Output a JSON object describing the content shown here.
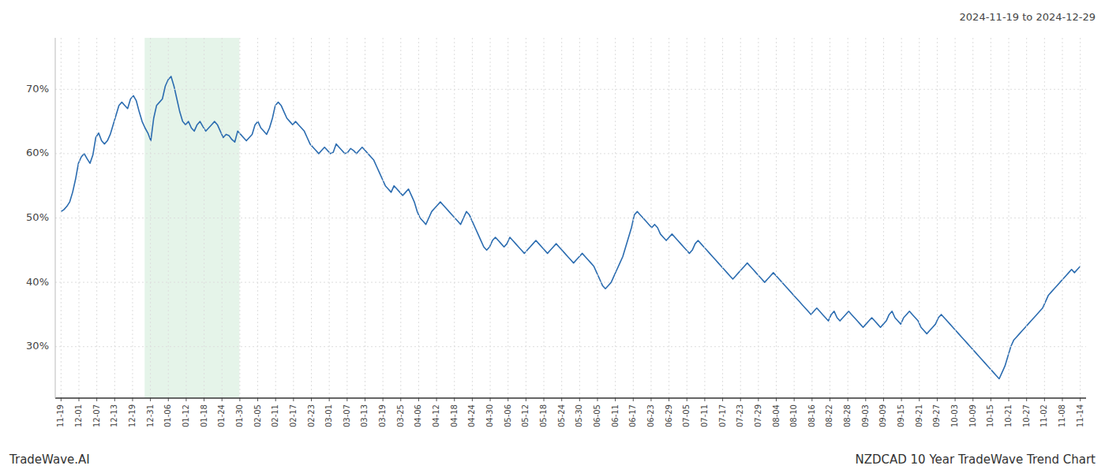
{
  "chart_data": {
    "type": "line",
    "title": "NZDCAD 10 Year TradeWave Trend Chart",
    "subtitle": "2024-11-19 to 2024-12-29",
    "annotations": [
      "TradeWave.AI"
    ],
    "color": "#2b6cb0",
    "grid": true,
    "xlim": [
      -2,
      354
    ],
    "xticks": [
      {
        "value": 0,
        "label": "11-19"
      },
      {
        "value": 6.1754,
        "label": "12-01"
      },
      {
        "value": 12.3509,
        "label": "12-07"
      },
      {
        "value": 18.5263,
        "label": "12-13"
      },
      {
        "value": 24.7018,
        "label": "12-19"
      },
      {
        "value": 30.8772,
        "label": "12-31"
      },
      {
        "value": 37.0526,
        "label": "01-06"
      },
      {
        "value": 43.2281,
        "label": "01-12"
      },
      {
        "value": 49.4035,
        "label": "01-18"
      },
      {
        "value": 55.5789,
        "label": "01-24"
      },
      {
        "value": 61.7544,
        "label": "01-30"
      },
      {
        "value": 67.9298,
        "label": "02-05"
      },
      {
        "value": 74.1053,
        "label": "02-11"
      },
      {
        "value": 80.2807,
        "label": "02-17"
      },
      {
        "value": 86.4561,
        "label": "02-23"
      },
      {
        "value": 92.6316,
        "label": "03-01"
      },
      {
        "value": 98.807,
        "label": "03-07"
      },
      {
        "value": 104.9825,
        "label": "03-13"
      },
      {
        "value": 111.1579,
        "label": "03-19"
      },
      {
        "value": 117.3333,
        "label": "03-25"
      },
      {
        "value": 123.5088,
        "label": "04-06"
      },
      {
        "value": 129.6842,
        "label": "04-12"
      },
      {
        "value": 135.8596,
        "label": "04-18"
      },
      {
        "value": 142.0351,
        "label": "04-24"
      },
      {
        "value": 148.2105,
        "label": "04-30"
      },
      {
        "value": 154.386,
        "label": "05-06"
      },
      {
        "value": 160.5614,
        "label": "05-12"
      },
      {
        "value": 166.7368,
        "label": "05-18"
      },
      {
        "value": 172.9123,
        "label": "05-24"
      },
      {
        "value": 179.0877,
        "label": "05-30"
      },
      {
        "value": 185.2632,
        "label": "06-05"
      },
      {
        "value": 191.4386,
        "label": "06-11"
      },
      {
        "value": 197.614,
        "label": "06-17"
      },
      {
        "value": 203.7895,
        "label": "06-23"
      },
      {
        "value": 209.9649,
        "label": "06-29"
      },
      {
        "value": 216.1404,
        "label": "07-05"
      },
      {
        "value": 222.3158,
        "label": "07-11"
      },
      {
        "value": 228.4912,
        "label": "07-17"
      },
      {
        "value": 234.6667,
        "label": "07-23"
      },
      {
        "value": 240.8421,
        "label": "07-29"
      },
      {
        "value": 247.0175,
        "label": "08-04"
      },
      {
        "value": 253.193,
        "label": "08-10"
      },
      {
        "value": 259.3684,
        "label": "08-16"
      },
      {
        "value": 265.5439,
        "label": "08-22"
      },
      {
        "value": 271.7193,
        "label": "08-28"
      },
      {
        "value": 277.8947,
        "label": "09-03"
      },
      {
        "value": 284.0702,
        "label": "09-09"
      },
      {
        "value": 290.2456,
        "label": "09-15"
      },
      {
        "value": 296.4211,
        "label": "09-21"
      },
      {
        "value": 302.5965,
        "label": "09-27"
      },
      {
        "value": 308.7719,
        "label": "10-03"
      },
      {
        "value": 314.9474,
        "label": "10-09"
      },
      {
        "value": 321.1228,
        "label": "10-15"
      },
      {
        "value": 327.2982,
        "label": "10-21"
      },
      {
        "value": 333.4737,
        "label": "10-27"
      },
      {
        "value": 339.6491,
        "label": "11-02"
      },
      {
        "value": 345.8246,
        "label": "11-08"
      },
      {
        "value": 352,
        "label": "11-14"
      }
    ],
    "ylim": [
      22,
      78
    ],
    "yticks": [
      {
        "value": 30,
        "label": "30%"
      },
      {
        "value": 40,
        "label": "40%"
      },
      {
        "value": 50,
        "label": "50%"
      },
      {
        "value": 60,
        "label": "60%"
      },
      {
        "value": 70,
        "label": "70%"
      }
    ],
    "shade": {
      "xlim": [
        28.864,
        61.6
      ],
      "color": "#d4edda"
    },
    "values": [
      51.0,
      51.3,
      51.8,
      52.5,
      54.0,
      56.0,
      58.5,
      59.5,
      60.0,
      59.2,
      58.5,
      59.8,
      62.5,
      63.2,
      62.0,
      61.5,
      62.0,
      63.0,
      64.5,
      66.0,
      67.5,
      68.0,
      67.5,
      67.0,
      68.5,
      69.0,
      68.2,
      66.5,
      65.0,
      64.0,
      63.2,
      62.0,
      65.5,
      67.5,
      68.0,
      68.5,
      70.5,
      71.5,
      72.0,
      70.5,
      68.5,
      66.5,
      65.0,
      64.5,
      65.0,
      64.0,
      63.5,
      64.5,
      65.0,
      64.2,
      63.5,
      64.0,
      64.5,
      65.0,
      64.5,
      63.5,
      62.5,
      63.0,
      62.8,
      62.2,
      61.8,
      63.5,
      63.0,
      62.5,
      62.0,
      62.5,
      63.0,
      64.5,
      65.0,
      64.0,
      63.5,
      63.0,
      64.0,
      65.5,
      67.5,
      68.0,
      67.5,
      66.5,
      65.5,
      65.0,
      64.5,
      65.0,
      64.5,
      64.0,
      63.5,
      62.5,
      61.5,
      61.0,
      60.5,
      60.0,
      60.5,
      61.0,
      60.5,
      60.0,
      60.2,
      61.5,
      61.0,
      60.5,
      60.0,
      60.2,
      60.8,
      60.5,
      60.0,
      60.5,
      61.0,
      60.5,
      60.0,
      59.5,
      59.0,
      58.0,
      57.0,
      56.0,
      55.0,
      54.5,
      54.0,
      55.0,
      54.5,
      54.0,
      53.5,
      54.0,
      54.5,
      53.5,
      52.5,
      51.0,
      50.0,
      49.5,
      49.0,
      50.0,
      51.0,
      51.5,
      52.0,
      52.5,
      52.0,
      51.5,
      51.0,
      50.5,
      50.0,
      49.5,
      49.0,
      50.0,
      51.0,
      50.5,
      49.5,
      48.5,
      47.5,
      46.5,
      45.5,
      45.0,
      45.5,
      46.5,
      47.0,
      46.5,
      46.0,
      45.5,
      46.0,
      47.0,
      46.5,
      46.0,
      45.5,
      45.0,
      44.5,
      45.0,
      45.5,
      46.0,
      46.5,
      46.0,
      45.5,
      45.0,
      44.5,
      45.0,
      45.5,
      46.0,
      45.5,
      45.0,
      44.5,
      44.0,
      43.5,
      43.0,
      43.5,
      44.0,
      44.5,
      44.0,
      43.5,
      43.0,
      42.5,
      41.5,
      40.5,
      39.5,
      39.0,
      39.5,
      40.0,
      41.0,
      42.0,
      43.0,
      44.0,
      45.5,
      47.0,
      48.5,
      50.5,
      51.0,
      50.5,
      50.0,
      49.5,
      49.0,
      48.5,
      49.0,
      48.5,
      47.5,
      47.0,
      46.5,
      47.0,
      47.5,
      47.0,
      46.5,
      46.0,
      45.5,
      45.0,
      44.5,
      45.0,
      46.0,
      46.5,
      46.0,
      45.5,
      45.0,
      44.5,
      44.0,
      43.5,
      43.0,
      42.5,
      42.0,
      41.5,
      41.0,
      40.5,
      41.0,
      41.5,
      42.0,
      42.5,
      43.0,
      42.5,
      42.0,
      41.5,
      41.0,
      40.5,
      40.0,
      40.5,
      41.0,
      41.5,
      41.0,
      40.5,
      40.0,
      39.5,
      39.0,
      38.5,
      38.0,
      37.5,
      37.0,
      36.5,
      36.0,
      35.5,
      35.0,
      35.5,
      36.0,
      35.5,
      35.0,
      34.5,
      34.0,
      35.0,
      35.5,
      34.5,
      34.0,
      34.5,
      35.0,
      35.5,
      35.0,
      34.5,
      34.0,
      33.5,
      33.0,
      33.5,
      34.0,
      34.5,
      34.0,
      33.5,
      33.0,
      33.5,
      34.0,
      35.0,
      35.5,
      34.5,
      34.0,
      33.5,
      34.5,
      35.0,
      35.5,
      35.0,
      34.5,
      34.0,
      33.0,
      32.5,
      32.0,
      32.5,
      33.0,
      33.5,
      34.5,
      35.0,
      34.5,
      34.0,
      33.5,
      33.0,
      32.5,
      32.0,
      31.5,
      31.0,
      30.5,
      30.0,
      29.5,
      29.0,
      28.5,
      28.0,
      27.5,
      27.0,
      26.5,
      26.0,
      25.5,
      25.0,
      26.0,
      27.0,
      28.5,
      30.0,
      31.0,
      31.5,
      32.0,
      32.5,
      33.0,
      33.5,
      34.0,
      34.5,
      35.0,
      35.5,
      36.0,
      37.0,
      38.0,
      38.5,
      39.0,
      39.5,
      40.0,
      40.5,
      41.0,
      41.5,
      42.0,
      41.5,
      42.0,
      42.5
    ]
  }
}
